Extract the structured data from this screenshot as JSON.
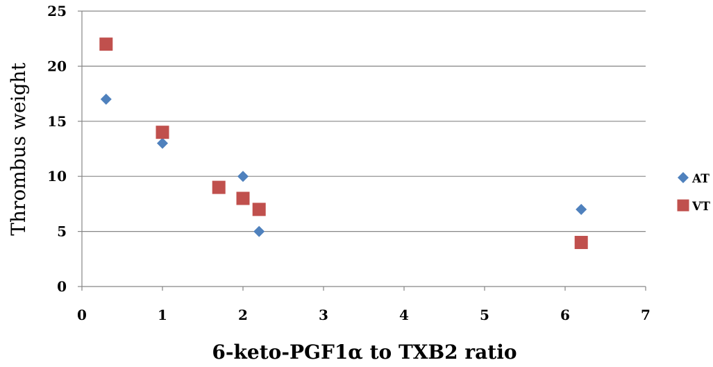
{
  "chart_data": {
    "type": "scatter",
    "xlabel": "6-keto-PGF1α to TXB2 ratio",
    "ylabel": "Thrombus weight",
    "xlim": [
      0,
      7
    ],
    "ylim": [
      0,
      25
    ],
    "x_ticks": [
      "0",
      "1",
      "2",
      "3",
      "4",
      "5",
      "6",
      "7"
    ],
    "y_ticks": [
      "0",
      "5",
      "10",
      "15",
      "20",
      "25"
    ],
    "grid": "horizontal",
    "legend_position": "right",
    "series": [
      {
        "name": "AT",
        "marker": "diamond",
        "color": "#4f81bd",
        "points": [
          {
            "x": 0.3,
            "y": 17
          },
          {
            "x": 1.0,
            "y": 13
          },
          {
            "x": 2.0,
            "y": 10
          },
          {
            "x": 2.2,
            "y": 5
          },
          {
            "x": 6.2,
            "y": 7
          }
        ]
      },
      {
        "name": "VT",
        "marker": "square",
        "color": "#c0504d",
        "points": [
          {
            "x": 0.3,
            "y": 22
          },
          {
            "x": 1.0,
            "y": 14
          },
          {
            "x": 1.7,
            "y": 9
          },
          {
            "x": 2.0,
            "y": 8
          },
          {
            "x": 2.2,
            "y": 7
          },
          {
            "x": 6.2,
            "y": 4
          }
        ]
      }
    ]
  }
}
